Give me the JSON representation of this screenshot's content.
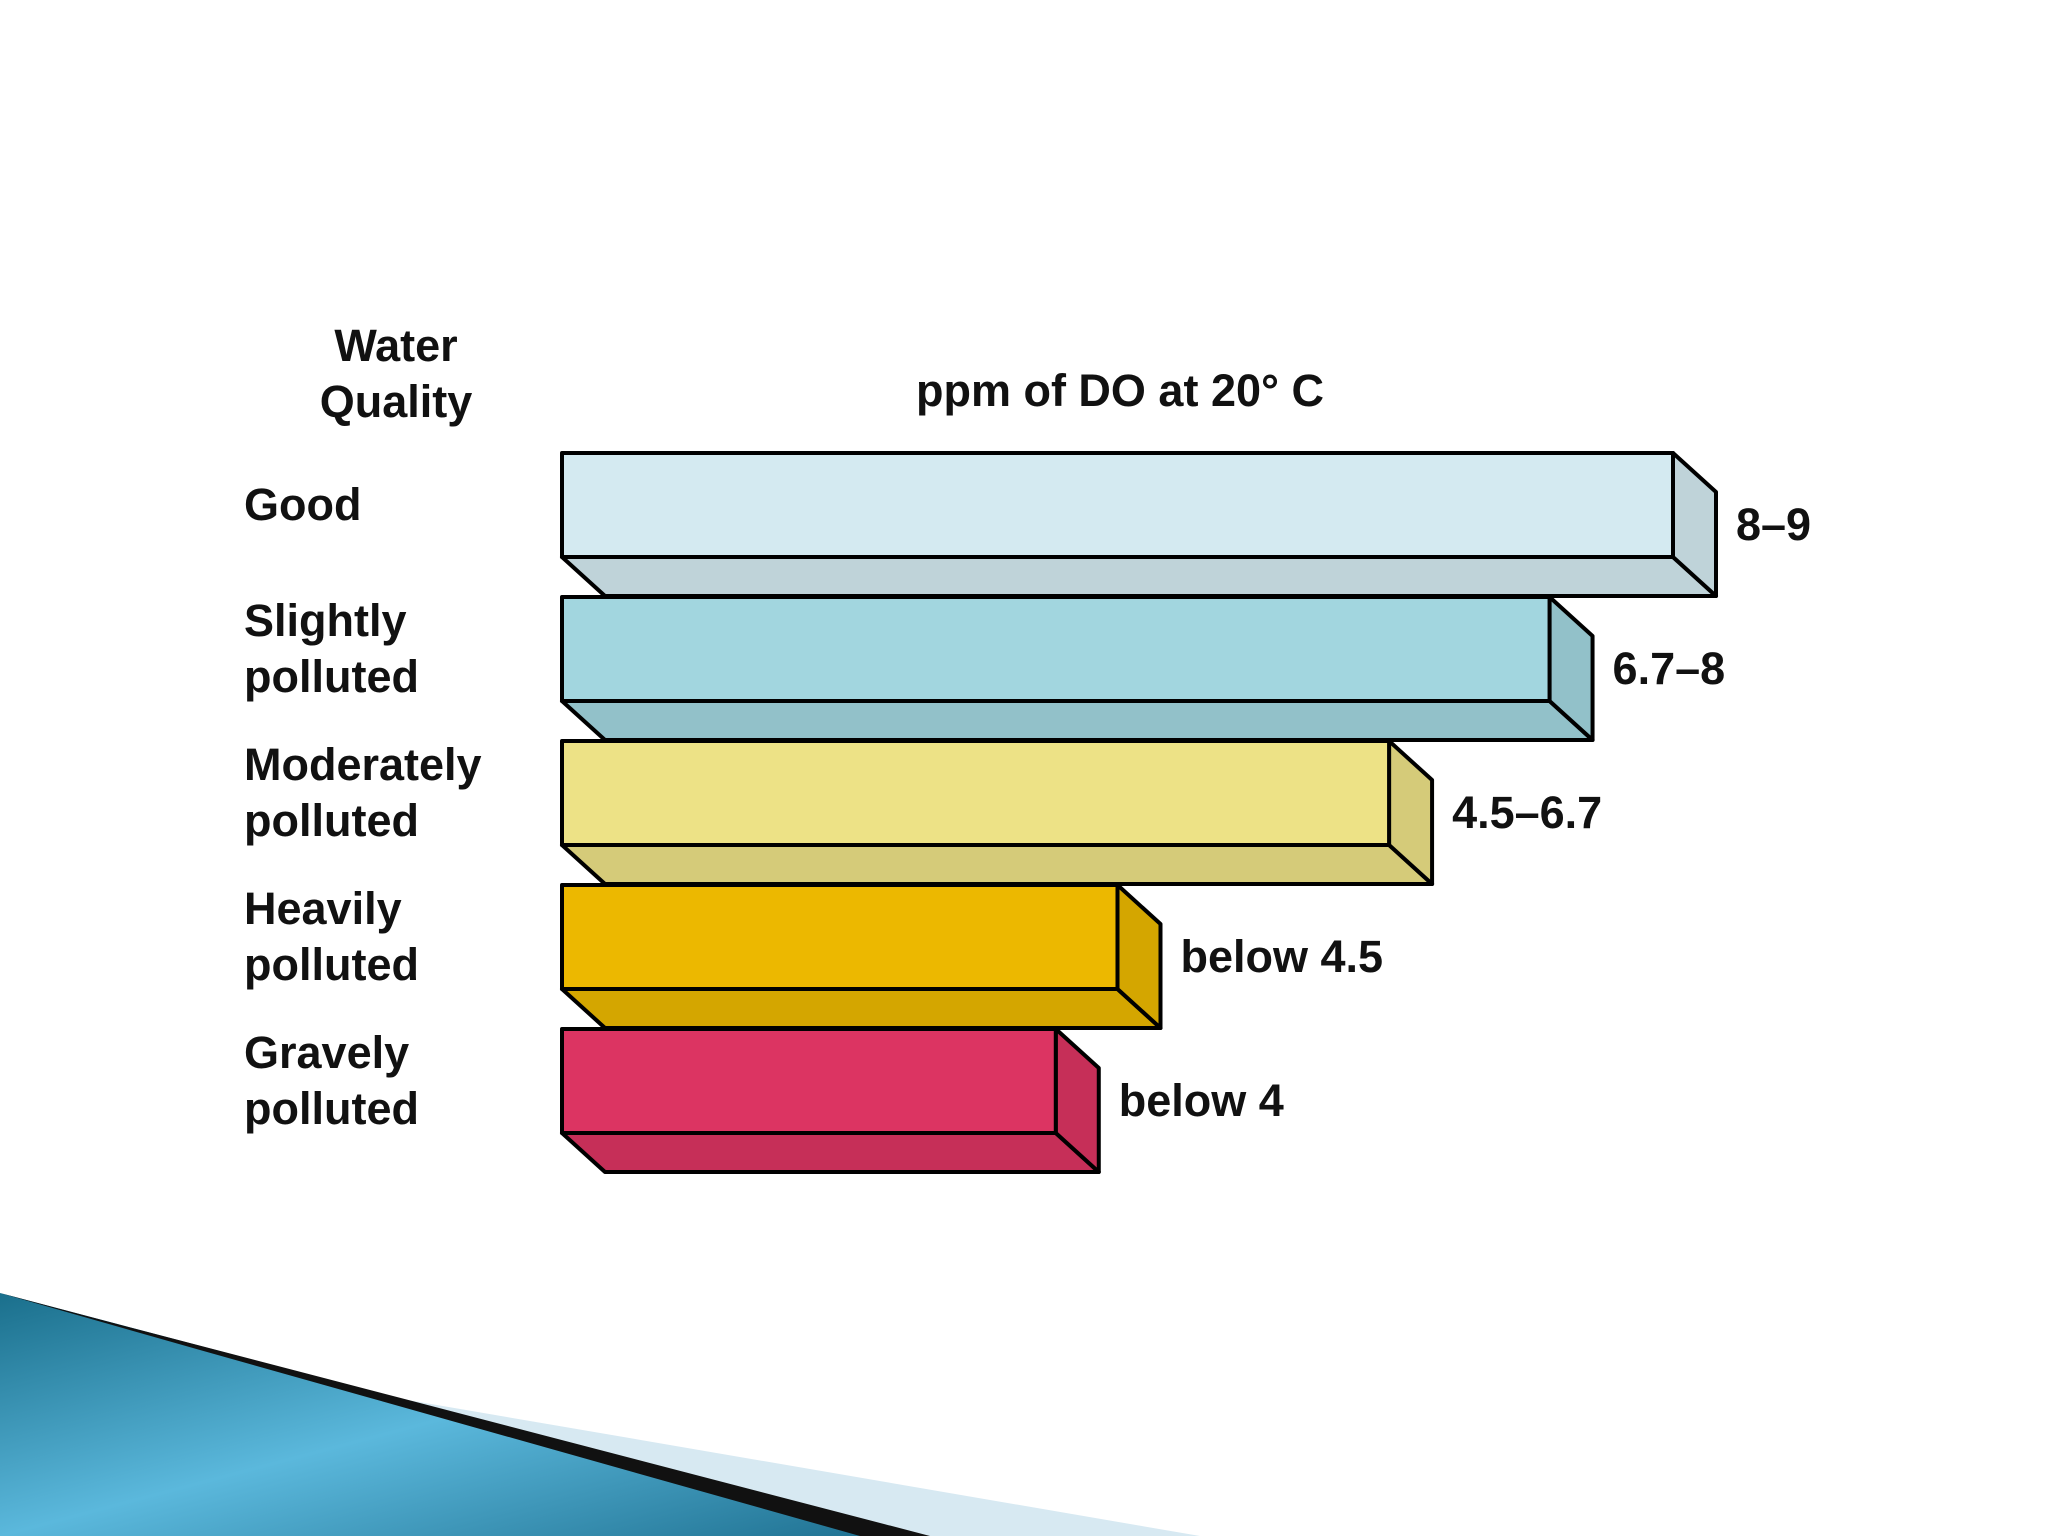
{
  "chart_data": {
    "type": "bar",
    "orientation": "horizontal",
    "category_axis_title": "Water Quality",
    "title": "ppm of DO at 20° C",
    "categories": [
      "Good",
      "Slightly polluted",
      "Moderately polluted",
      "Heavily polluted",
      "Gravely polluted"
    ],
    "values": [
      9,
      8,
      6.7,
      4.5,
      4
    ],
    "value_labels": [
      "8–9",
      "6.7–8",
      "4.5–6.7",
      "below 4.5",
      "below 4"
    ],
    "colors": [
      "#d4eaf1",
      "#a2d6df",
      "#ede286",
      "#ecb800",
      "#dc3462"
    ]
  }
}
